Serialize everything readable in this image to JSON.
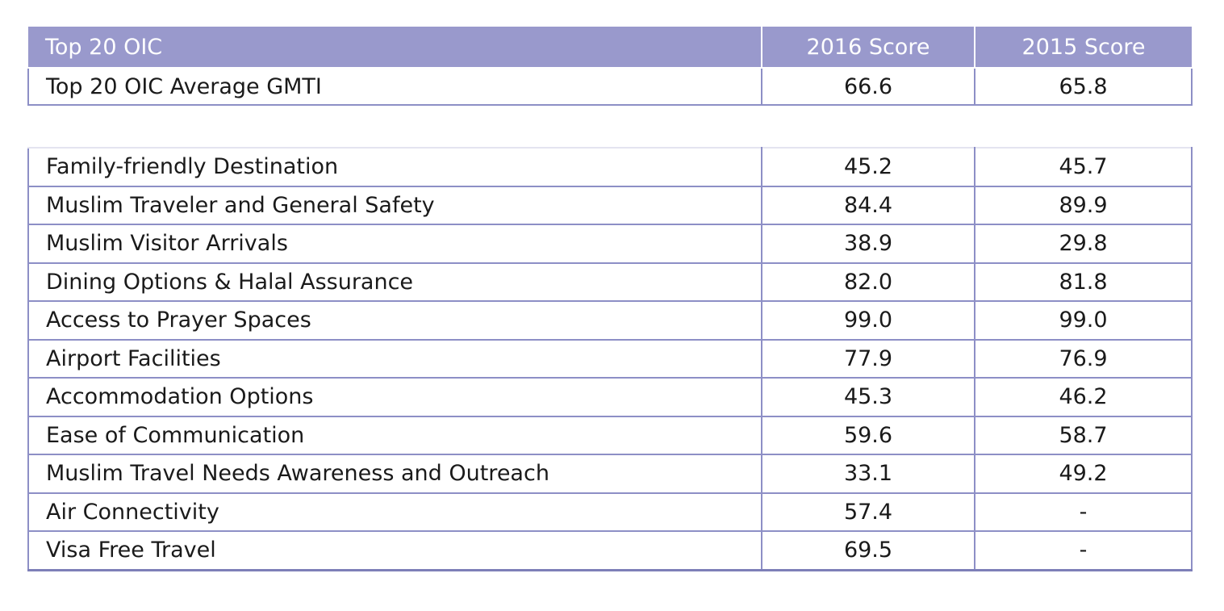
{
  "chart_data": {
    "type": "table",
    "columns": [
      "Top 20 OIC",
      "2016 Score",
      "2015 Score"
    ],
    "summary_row": {
      "label": "Top 20 OIC Average GMTI",
      "score_2016": "66.6",
      "score_2015": "65.8"
    },
    "rows": [
      {
        "label": "Family-friendly Destination",
        "score_2016": "45.2",
        "score_2015": "45.7"
      },
      {
        "label": "Muslim Traveler and General Safety",
        "score_2016": "84.4",
        "score_2015": "89.9"
      },
      {
        "label": "Muslim Visitor Arrivals",
        "score_2016": "38.9",
        "score_2015": "29.8"
      },
      {
        "label": "Dining Options & Halal Assurance",
        "score_2016": "82.0",
        "score_2015": "81.8"
      },
      {
        "label": "Access to Prayer Spaces",
        "score_2016": "99.0",
        "score_2015": "99.0"
      },
      {
        "label": "Airport Facilities",
        "score_2016": "77.9",
        "score_2015": "76.9"
      },
      {
        "label": "Accommodation Options",
        "score_2016": "45.3",
        "score_2015": "46.2"
      },
      {
        "label": "Ease of Communication",
        "score_2016": "59.6",
        "score_2015": "58.7"
      },
      {
        "label": "Muslim Travel Needs Awareness and Outreach",
        "score_2016": "33.1",
        "score_2015": "49.2"
      },
      {
        "label": "Air Connectivity",
        "score_2016": "57.4",
        "score_2015": "-"
      },
      {
        "label": "Visa Free Travel",
        "score_2016": "69.5",
        "score_2015": "-"
      }
    ]
  },
  "colors": {
    "header_bg": "#9999cc",
    "header_text": "#ffffff",
    "border": "#8d8fc6"
  }
}
